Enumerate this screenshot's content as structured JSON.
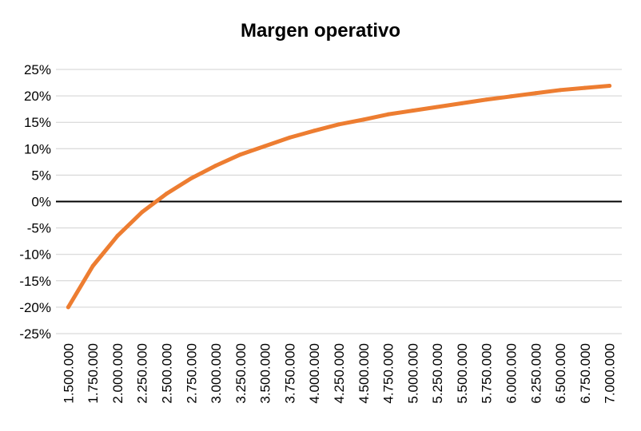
{
  "chart_data": {
    "type": "line",
    "title": "Margen operativo",
    "xlabel": "",
    "ylabel": "",
    "x": [
      "1.500.000",
      "1.750.000",
      "2.000.000",
      "2.250.000",
      "2.500.000",
      "2.750.000",
      "3.000.000",
      "3.250.000",
      "3.500.000",
      "3.750.000",
      "4.000.000",
      "4.250.000",
      "4.500.000",
      "4.750.000",
      "5.000.000",
      "5.250.000",
      "5.500.000",
      "5.750.000",
      "6.000.000",
      "6.250.000",
      "6.500.000",
      "6.750.000",
      "7.000.000"
    ],
    "series": [
      {
        "values": [
          -20,
          -12.2,
          -6.5,
          -2.0,
          1.5,
          4.4,
          6.8,
          8.9,
          10.5,
          12.1,
          13.4,
          14.6,
          15.5,
          16.5,
          17.2,
          17.9,
          18.6,
          19.3,
          19.9,
          20.5,
          21.1,
          21.5,
          21.9
        ],
        "color": "#ED7D31"
      }
    ],
    "ylim": [
      -25,
      25
    ],
    "ystep": 5,
    "ytick_format": "percent",
    "grid": true,
    "legend": "none",
    "zero_line_color": "#000000",
    "grid_color": "#D0D0D0"
  }
}
